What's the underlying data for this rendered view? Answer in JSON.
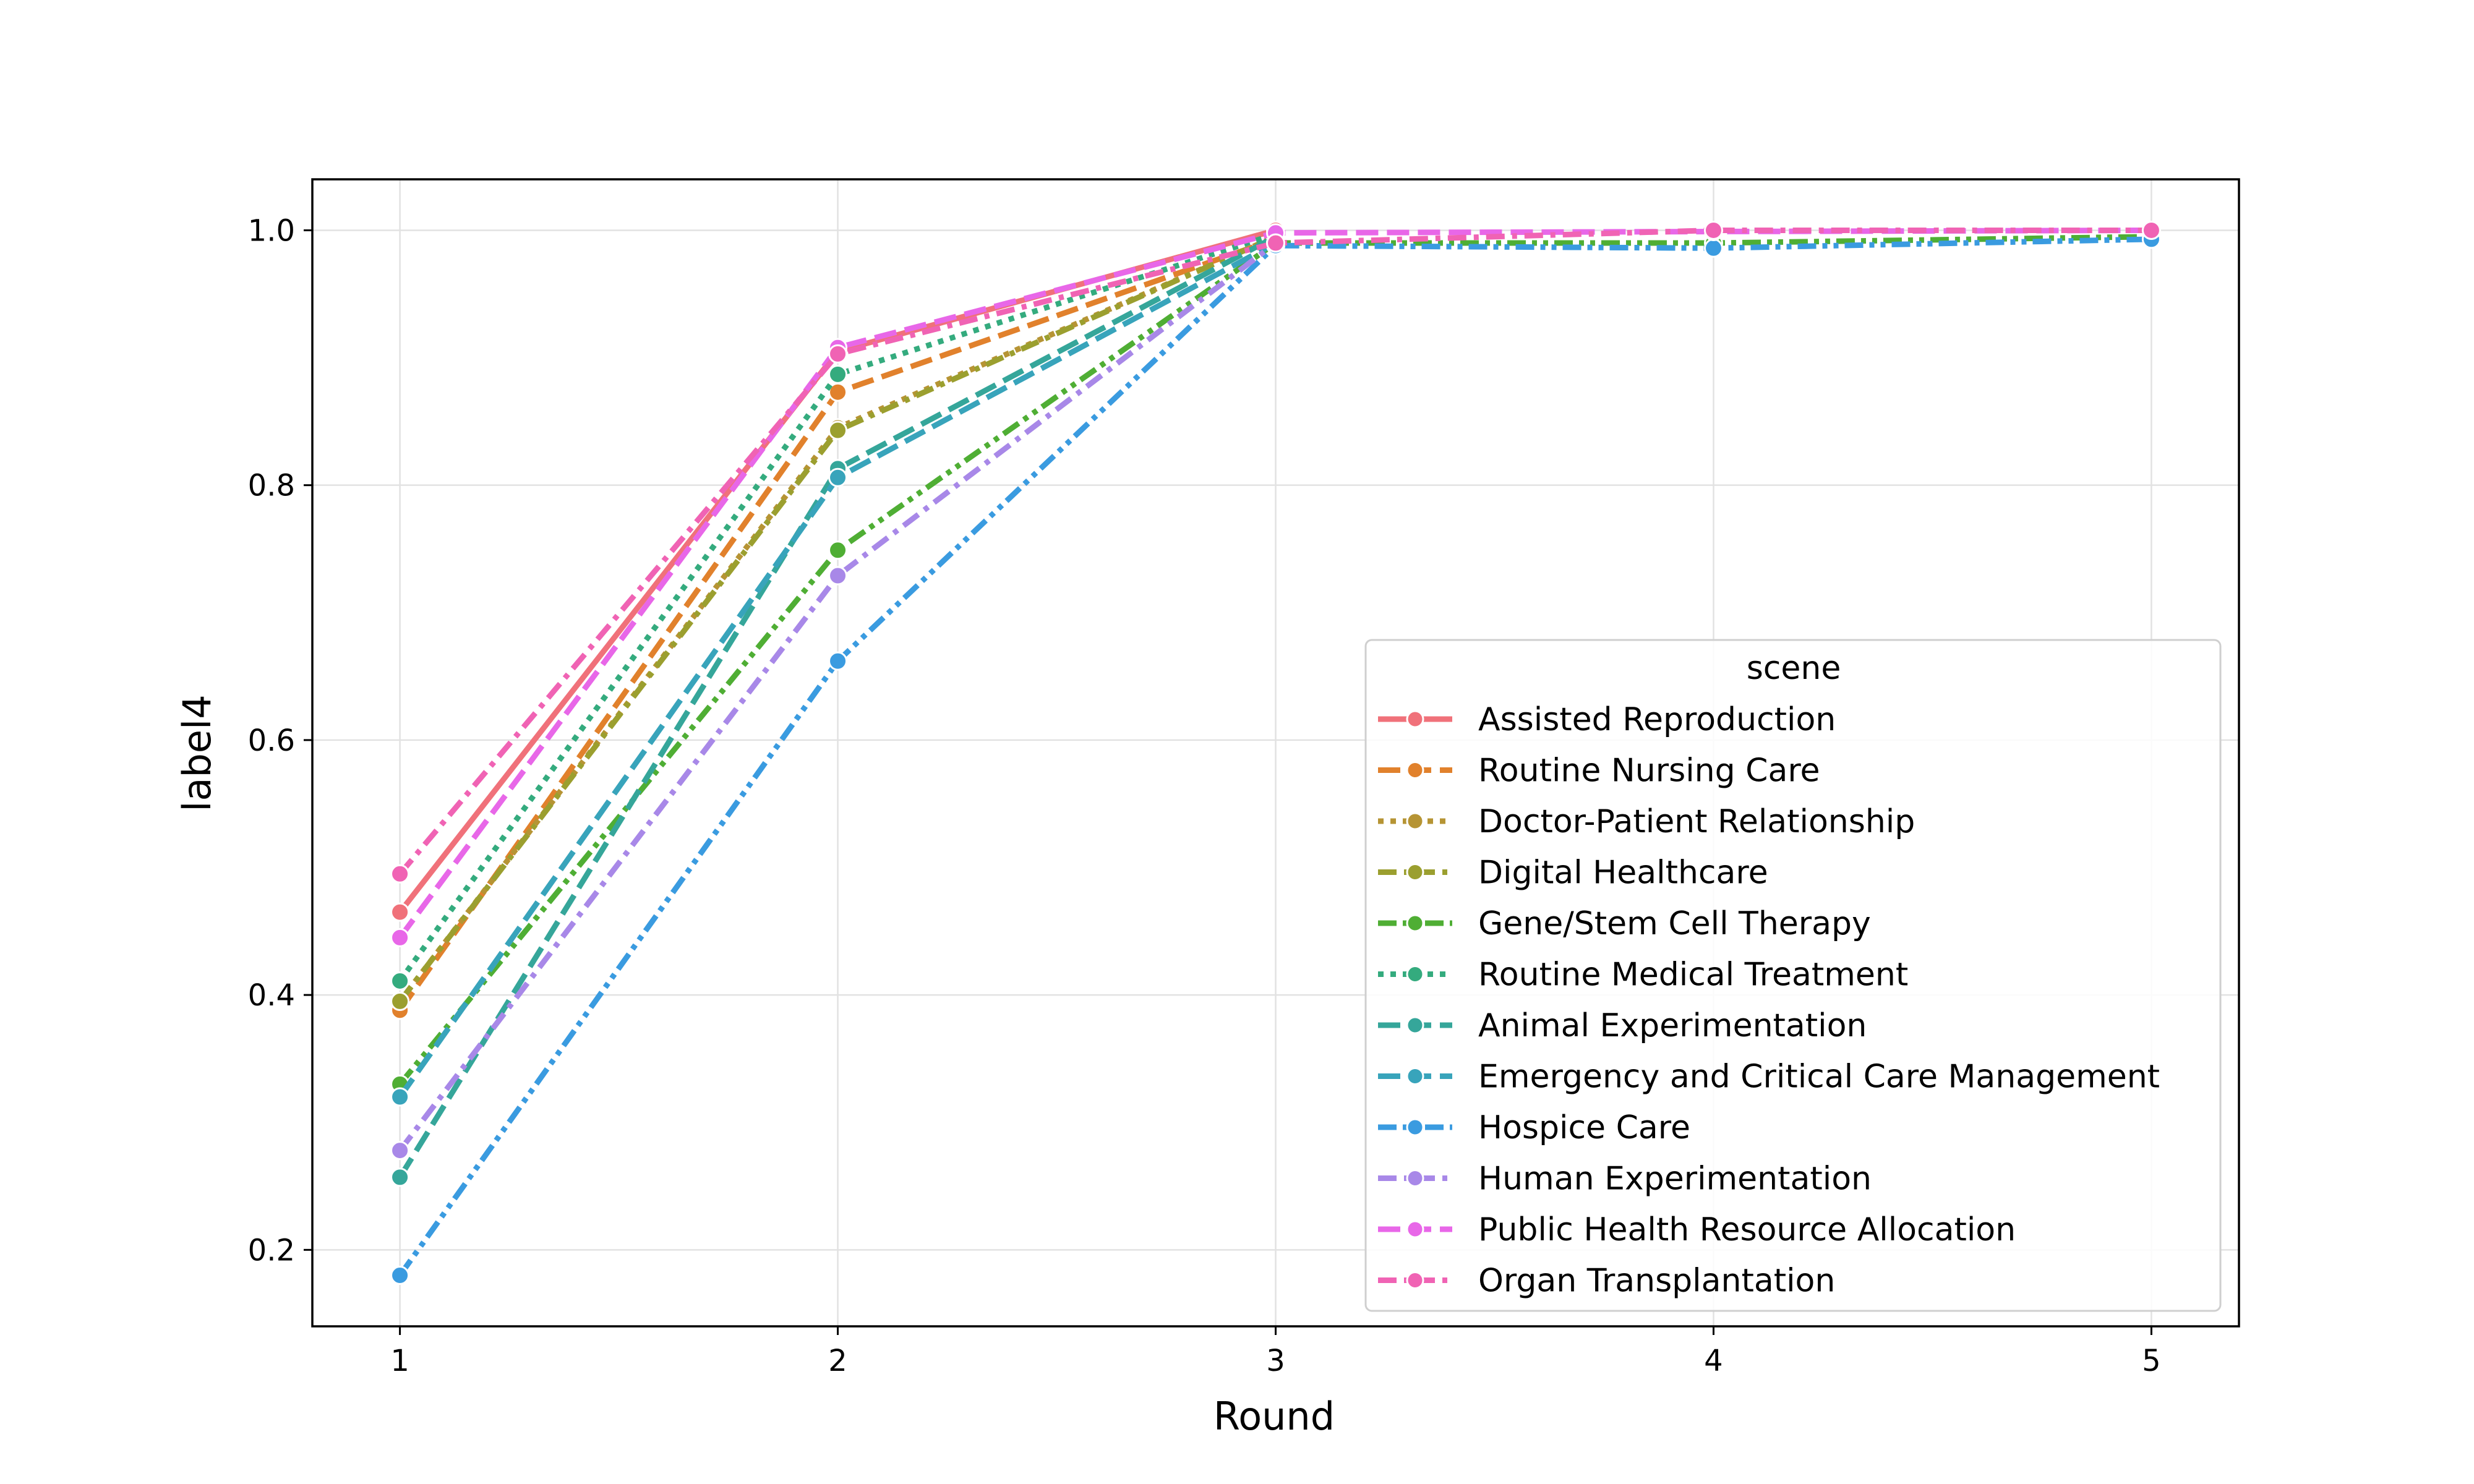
{
  "chart_data": {
    "type": "line",
    "title": "",
    "xlabel": "Round",
    "ylabel": "label4",
    "x": [
      1,
      2,
      3,
      4,
      5
    ],
    "xticks": [
      "1",
      "2",
      "3",
      "4",
      "5"
    ],
    "yticks": [
      "0.2",
      "0.4",
      "0.6",
      "0.8",
      "1.0"
    ],
    "xlim": [
      0.8,
      5.2
    ],
    "ylim": [
      0.14,
      1.04
    ],
    "grid": true,
    "legend": {
      "title": "scene",
      "position": "lower-right"
    },
    "series": [
      {
        "name": "Assisted Reproduction",
        "color": "#f0717a",
        "dash": "solid",
        "values": [
          0.465,
          0.905,
          1.0,
          null,
          null
        ]
      },
      {
        "name": "Routine Nursing Care",
        "color": "#e1812c",
        "dash": "dashed",
        "values": [
          0.388,
          0.873,
          0.993,
          null,
          null
        ]
      },
      {
        "name": "Doctor-Patient Relationship",
        "color": "#b69434",
        "dash": "dotted",
        "values": [
          0.395,
          0.845,
          0.995,
          null,
          null
        ]
      },
      {
        "name": "Digital Healthcare",
        "color": "#9b9f2f",
        "dash": "dashdot",
        "values": [
          0.395,
          0.843,
          0.995,
          null,
          null
        ]
      },
      {
        "name": "Gene/Stem Cell Therapy",
        "color": "#4fae34",
        "dash": "dashdotdot",
        "values": [
          0.33,
          0.749,
          0.99,
          0.99,
          0.995
        ]
      },
      {
        "name": "Routine Medical Treatment",
        "color": "#34ab7e",
        "dash": "dotted",
        "values": [
          0.411,
          0.887,
          0.997,
          null,
          null
        ]
      },
      {
        "name": "Animal Experimentation",
        "color": "#35a69a",
        "dash": "dashed",
        "values": [
          0.257,
          0.813,
          0.995,
          null,
          null
        ]
      },
      {
        "name": "Emergency and Critical Care Management",
        "color": "#38a4bb",
        "dash": "dashed",
        "values": [
          0.32,
          0.806,
          0.99,
          null,
          null
        ]
      },
      {
        "name": "Hospice Care",
        "color": "#3a9be0",
        "dash": "dashdotdot",
        "values": [
          0.18,
          0.662,
          0.988,
          0.986,
          0.993
        ]
      },
      {
        "name": "Human Experimentation",
        "color": "#a888e8",
        "dash": "dashdot",
        "values": [
          0.278,
          0.729,
          0.99,
          null,
          null
        ]
      },
      {
        "name": "Public Health Resource Allocation",
        "color": "#e867e8",
        "dash": "dashed",
        "values": [
          0.445,
          0.908,
          0.998,
          0.999,
          1.0
        ]
      },
      {
        "name": "Organ Transplantation",
        "color": "#f063b4",
        "dash": "dashdot",
        "values": [
          0.495,
          0.903,
          0.99,
          1.0,
          1.0
        ]
      }
    ]
  }
}
